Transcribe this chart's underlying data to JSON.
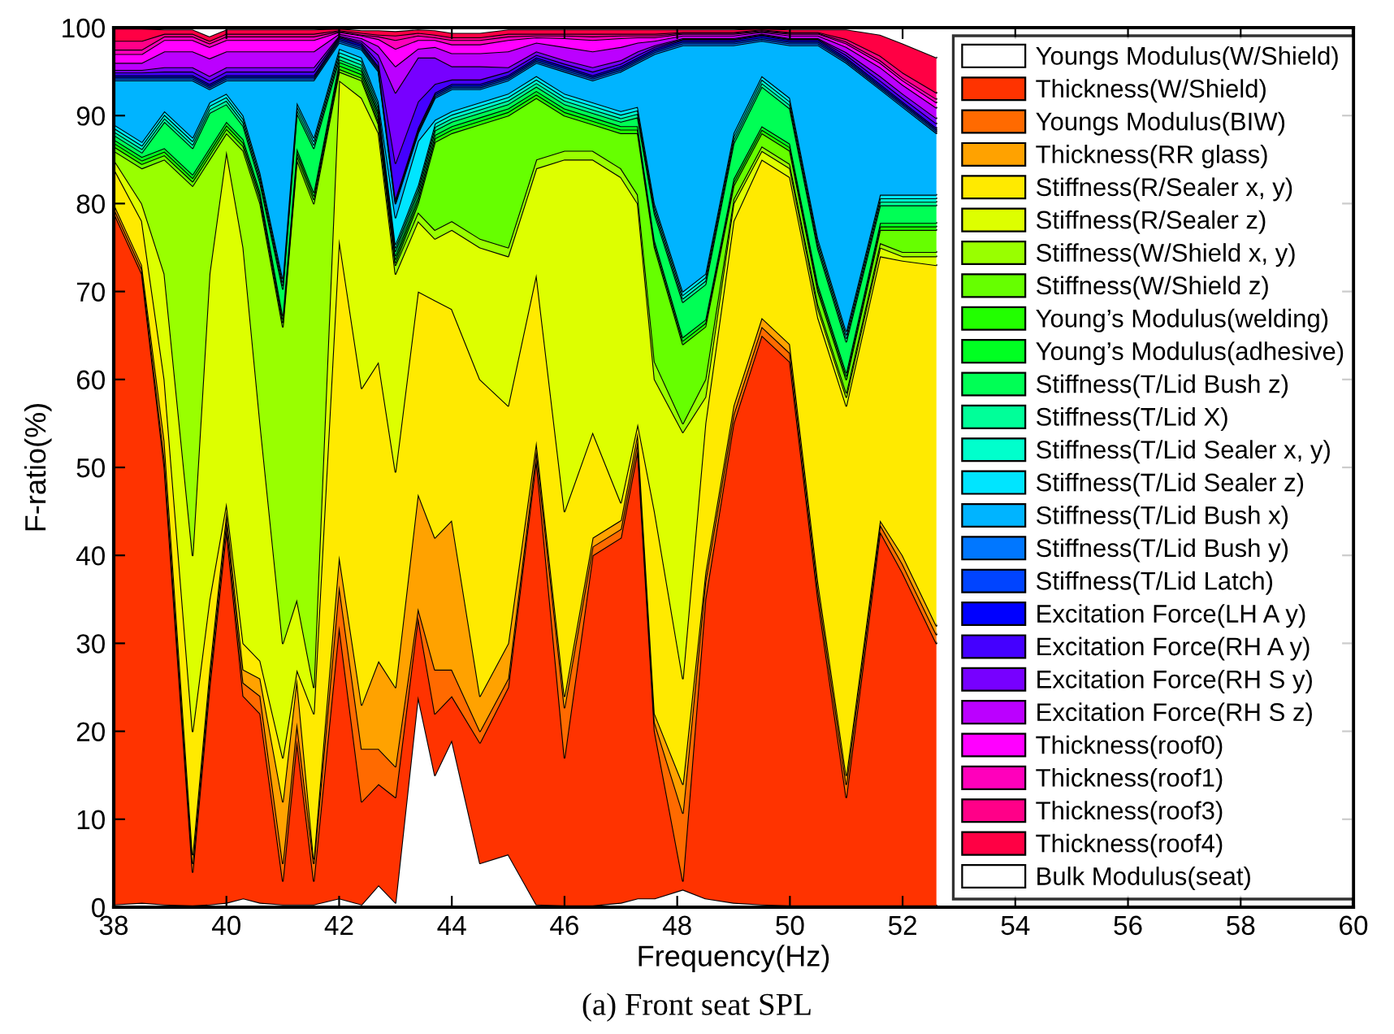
{
  "chart_data": {
    "type": "area",
    "stacked": true,
    "xlabel": "Frequency(Hz)",
    "ylabel": "F-ratio(%)",
    "annotations": [
      "(a) Front seat SPL"
    ],
    "xlim": [
      38,
      60
    ],
    "ylim": [
      0,
      100
    ],
    "xticks": [
      38,
      40,
      42,
      44,
      46,
      48,
      50,
      52,
      54,
      56,
      58,
      60
    ],
    "yticks": [
      0,
      10,
      20,
      30,
      40,
      50,
      60,
      70,
      80,
      90,
      100
    ],
    "grid": false,
    "legend": "right",
    "x": [
      38,
      38.5,
      38.9,
      39.4,
      39.7,
      40,
      40.3,
      40.6,
      41,
      41.25,
      41.55,
      42,
      42.4,
      42.7,
      43,
      43.4,
      43.7,
      44,
      44.5,
      45,
      45.5,
      46,
      46.5,
      47,
      47.3,
      47.6,
      48.1,
      48.5,
      49,
      49.5,
      50,
      50.5,
      51,
      51.6,
      52,
      52.6
    ],
    "series": [
      {
        "name": "Youngs Modulus(W/Shield)",
        "color": "#ffffff",
        "values": [
          0.3,
          0.5,
          0.3,
          0.2,
          0.3,
          0.5,
          1,
          0.5,
          0.3,
          0.3,
          0.3,
          1,
          0.3,
          2.5,
          0.5,
          24,
          15,
          19,
          5,
          6,
          0.3,
          0.2,
          0.2,
          0.5,
          1,
          1,
          2,
          1,
          0.5,
          0.3,
          0.2,
          0.2,
          0.2,
          0.2,
          0.2,
          0.2
        ]
      },
      {
        "name": "Thickness(W/Shield)",
        "color": "#ff3300",
        "values": [
          78.7,
          71.5,
          49.7,
          3.8,
          24.7,
          42.5,
          23,
          21.5,
          2.7,
          18.7,
          2.7,
          31,
          11.7,
          11.5,
          12,
          9,
          7,
          5,
          13.7,
          19,
          50.7,
          16.8,
          39.8,
          41.5,
          51,
          19,
          1,
          34,
          54.5,
          64.7,
          61.8,
          34.8,
          12.3,
          42.5,
          37.8,
          29.8
        ]
      },
      {
        "name": "Youngs Modulus(BIW)",
        "color": "#ff6a00",
        "values": [
          0.5,
          0.5,
          1,
          1,
          1,
          1,
          1.5,
          2,
          2,
          2,
          2,
          4.6,
          6,
          4,
          3.5,
          1,
          5,
          3,
          1.3,
          1,
          1,
          5.7,
          1,
          1,
          1,
          1,
          7.7,
          2,
          1,
          1,
          1,
          1,
          1.5,
          0.8,
          1,
          1
        ]
      },
      {
        "name": "Thickness(RR glass)",
        "color": "#ffa200",
        "values": [
          0.5,
          0.5,
          2,
          1,
          1,
          1,
          1.5,
          2,
          7,
          5,
          0.5,
          3.4,
          5,
          10,
          9,
          13,
          15,
          17,
          4,
          4,
          1,
          1.3,
          1,
          1,
          1,
          1,
          3.3,
          1,
          1,
          1,
          1,
          1,
          1,
          0.5,
          1,
          1
        ]
      },
      {
        "name": "Stiffness(R/Sealer x, y)",
        "color": "#ffea00",
        "values": [
          4,
          5,
          7,
          14,
          8,
          1,
          3,
          2,
          5,
          1,
          16.5,
          36,
          36,
          34,
          24.5,
          23,
          27,
          24,
          36,
          27,
          19,
          21,
          12,
          2,
          1,
          23,
          12,
          17,
          21,
          18,
          19,
          30,
          42,
          30,
          33.5,
          41
        ]
      },
      {
        "name": "Stiffness(R/Sealer z)",
        "color": "#ddff00",
        "values": [
          1,
          2,
          12,
          20,
          37,
          40,
          45,
          27,
          13,
          8,
          3,
          18,
          33,
          26,
          22.5,
          8,
          7,
          9,
          15,
          17,
          12,
          40,
          31,
          37,
          25,
          15,
          28,
          3,
          2,
          1,
          1,
          1,
          1,
          1,
          0.5,
          1
        ]
      },
      {
        "name": "Stiffness(W/Shield x, y)",
        "color": "#99ff00",
        "values": [
          1,
          4,
          13,
          42,
          13,
          2,
          11,
          25,
          36,
          50,
          55,
          1,
          2,
          1,
          1,
          1,
          1,
          1,
          1,
          1,
          1,
          1,
          1,
          1,
          1,
          2,
          1,
          2,
          0.5,
          0.5,
          0.5,
          0.5,
          0.5,
          0.5,
          0.5,
          0.5
        ]
      },
      {
        "name": "Stiffness(W/Shield z)",
        "color": "#66ff00",
        "values": [
          0.5,
          0.5,
          0.5,
          0.5,
          0.5,
          0.5,
          0.5,
          0.5,
          0.5,
          0.5,
          0.5,
          0.3,
          0.3,
          0.3,
          0.3,
          1,
          10,
          10,
          13,
          15,
          7,
          4,
          3,
          4,
          7,
          13,
          9,
          6,
          1.5,
          1.5,
          1.5,
          1.5,
          1.5,
          1.5,
          2.5,
          2.5
        ]
      },
      {
        "name": "Young’s Modulus(welding)",
        "color": "#22ff00",
        "values": [
          0.4,
          0.4,
          0.4,
          0.4,
          0.4,
          0.4,
          0.4,
          0.4,
          0.4,
          0.4,
          0.4,
          0.4,
          0.4,
          0.4,
          0.4,
          0.4,
          0.4,
          0.4,
          0.4,
          0.4,
          0.4,
          0.4,
          0.4,
          0.4,
          0.4,
          0.4,
          0.4,
          0.4,
          0.4,
          0.4,
          0.4,
          0.4,
          0.4,
          0.4,
          0.4,
          0.4
        ]
      },
      {
        "name": "Young’s Modulus(adhesive)",
        "color": "#00ff22",
        "values": [
          0.4,
          0.4,
          0.4,
          0.4,
          0.4,
          0.4,
          0.4,
          0.4,
          0.4,
          0.4,
          0.4,
          0.4,
          0.4,
          0.4,
          0.4,
          0.4,
          0.4,
          0.4,
          0.4,
          0.4,
          0.4,
          0.4,
          0.4,
          0.4,
          0.4,
          0.4,
          0.4,
          0.4,
          0.4,
          0.4,
          0.4,
          0.4,
          0.4,
          0.4,
          0.4,
          0.4
        ]
      },
      {
        "name": "Stiffness(T/Lid Bush z)",
        "color": "#00ff55",
        "values": [
          0.5,
          0.5,
          3,
          3,
          4,
          2,
          1.5,
          1,
          3,
          4,
          5,
          0.3,
          0.3,
          0.3,
          0.5,
          0.5,
          0.5,
          0.5,
          0.5,
          0.5,
          0.5,
          0.5,
          0.5,
          0.5,
          1,
          3,
          4,
          4,
          4,
          4.5,
          4,
          4,
          3.5,
          2,
          2,
          2
        ]
      },
      {
        "name": "Stiffness(T/Lid X)",
        "color": "#00ff99",
        "values": [
          0.4,
          0.4,
          0.4,
          0.4,
          0.4,
          0.4,
          0.4,
          0.4,
          0.4,
          0.4,
          0.4,
          0.4,
          0.4,
          0.4,
          0.4,
          0.4,
          0.4,
          0.4,
          0.4,
          0.4,
          0.4,
          0.4,
          0.4,
          0.4,
          0.4,
          0.4,
          0.4,
          0.4,
          0.4,
          0.4,
          0.4,
          0.4,
          0.4,
          0.4,
          0.4,
          0.4
        ]
      },
      {
        "name": "Stiffness(T/Lid Sealer x, y)",
        "color": "#00ffcc",
        "values": [
          0.4,
          0.4,
          0.4,
          0.4,
          0.4,
          0.4,
          0.4,
          0.4,
          0.4,
          0.4,
          0.4,
          0.4,
          0.4,
          0.4,
          0.4,
          0.4,
          0.4,
          0.4,
          0.4,
          0.4,
          0.4,
          0.4,
          0.4,
          0.4,
          0.4,
          0.4,
          0.4,
          0.4,
          0.4,
          0.4,
          0.4,
          0.4,
          0.4,
          0.4,
          0.4,
          0.4
        ]
      },
      {
        "name": "Stiffness(T/Lid Sealer z)",
        "color": "#00e5ff",
        "values": [
          0.4,
          0.4,
          0.4,
          0.4,
          0.4,
          0.4,
          0.4,
          0.4,
          0.4,
          0.4,
          0.4,
          0.4,
          0.4,
          0.4,
          3,
          5,
          0.4,
          0.4,
          0.4,
          0.4,
          0.4,
          0.4,
          0.4,
          0.4,
          0.4,
          0.4,
          0.4,
          0.4,
          0.4,
          0.4,
          0.4,
          0.4,
          0.4,
          0.4,
          0.4,
          0.4
        ]
      },
      {
        "name": "Stiffness(T/Lid Bush x)",
        "color": "#00b4ff",
        "values": [
          5,
          7,
          3.5,
          6.5,
          1.5,
          1.5,
          4,
          10.5,
          22.5,
          2.5,
          6.5,
          0.7,
          0.9,
          3.4,
          1.6,
          0.9,
          2.5,
          2.5,
          1.5,
          1.5,
          1.5,
          2.5,
          2.5,
          4.5,
          5,
          17,
          28,
          26,
          10,
          4,
          6,
          22,
          30.5,
          12,
          10,
          7
        ]
      },
      {
        "name": "Stiffness(T/Lid Bush y)",
        "color": "#0077ff",
        "values": [
          0.2,
          0.2,
          0.2,
          0.2,
          0.2,
          0.2,
          0.2,
          0.2,
          0.2,
          0.2,
          0.2,
          0.2,
          0.2,
          0.2,
          0.2,
          0.2,
          0.2,
          0.2,
          0.2,
          0.2,
          0.2,
          0.2,
          0.2,
          0.2,
          0.2,
          0.2,
          0.2,
          0.2,
          0.2,
          0.2,
          0.2,
          0.2,
          0.2,
          0.2,
          0.2,
          0.2
        ]
      },
      {
        "name": "Stiffness(T/Lid Latch)",
        "color": "#0044ff",
        "values": [
          0.2,
          0.2,
          0.2,
          0.2,
          0.2,
          0.2,
          0.2,
          0.2,
          0.2,
          0.2,
          0.2,
          0.2,
          0.2,
          0.2,
          0.2,
          0.2,
          0.2,
          0.2,
          0.2,
          0.2,
          0.2,
          0.2,
          0.2,
          0.2,
          0.2,
          0.2,
          0.2,
          0.2,
          0.2,
          0.2,
          0.2,
          0.2,
          0.2,
          0.2,
          0.2,
          0.2
        ]
      },
      {
        "name": "Excitation Force(LH A y)",
        "color": "#0000ff",
        "values": [
          0.2,
          0.2,
          0.2,
          0.2,
          0.2,
          0.2,
          0.2,
          0.2,
          0.2,
          0.2,
          0.2,
          0.2,
          0.2,
          0.2,
          0.2,
          0.2,
          0.2,
          0.2,
          0.2,
          0.2,
          0.2,
          0.2,
          0.2,
          0.2,
          0.2,
          0.2,
          0.2,
          0.2,
          0.2,
          0.2,
          0.2,
          0.2,
          0.2,
          0.2,
          0.2,
          0.2
        ]
      },
      {
        "name": "Excitation Force(RH A y)",
        "color": "#4400ff",
        "values": [
          0.3,
          0.3,
          0.4,
          0.4,
          0.4,
          0.4,
          0.4,
          0.4,
          0.4,
          0.4,
          0.4,
          0.1,
          0.2,
          0.5,
          4,
          3,
          1,
          0.5,
          0.5,
          0.4,
          0.3,
          0.3,
          0.4,
          0.3,
          0.3,
          0.2,
          0.1,
          0.1,
          0.1,
          0.1,
          0.1,
          0.1,
          0.3,
          0.4,
          0.4,
          0.5
        ]
      },
      {
        "name": "Excitation Force(RH S y)",
        "color": "#7700ff",
        "values": [
          0.3,
          0.3,
          0.5,
          0.5,
          0.5,
          0.5,
          0.5,
          0.5,
          0.5,
          0.5,
          0.5,
          0.1,
          0.2,
          0.8,
          8,
          5,
          3,
          1.5,
          1.5,
          0.5,
          0.4,
          0.4,
          0.5,
          0.4,
          0.4,
          0.2,
          0.1,
          0.1,
          0.1,
          0.1,
          0.1,
          0.1,
          0.3,
          0.5,
          0.5,
          0.6
        ]
      },
      {
        "name": "Excitation Force(RH S z)",
        "color": "#bb00ff",
        "values": [
          0.8,
          0.8,
          1.8,
          1.8,
          2,
          1.8,
          1.8,
          1.8,
          1.8,
          1.8,
          1.8,
          0.2,
          0.3,
          1,
          3,
          1,
          1.2,
          1.5,
          1.5,
          1.8,
          1,
          1.5,
          1.8,
          1.5,
          1,
          0.5,
          0.3,
          0.3,
          0.3,
          0.2,
          0.3,
          0.3,
          0.6,
          1,
          1,
          1.2
        ]
      },
      {
        "name": "Thickness(roof0)",
        "color": "#ff00ff",
        "values": [
          1,
          1,
          1.3,
          1.3,
          1.3,
          1.3,
          1.3,
          1.3,
          1.3,
          1.3,
          1.3,
          0.2,
          0.3,
          0.8,
          2,
          1,
          0.8,
          1,
          1,
          1.3,
          0.6,
          1,
          1.3,
          1,
          0.6,
          0.4,
          0.2,
          0.2,
          0.2,
          0.1,
          0.2,
          0.2,
          0.4,
          0.5,
          0.5,
          0.6
        ]
      },
      {
        "name": "Thickness(roof1)",
        "color": "#ff00bb",
        "values": [
          0.5,
          0.5,
          0.4,
          0.4,
          0.4,
          0.4,
          0.4,
          0.4,
          0.4,
          0.4,
          0.4,
          0.1,
          0.1,
          0.3,
          1,
          0.5,
          0.3,
          0.5,
          0.5,
          0.4,
          0.2,
          0.3,
          0.4,
          0.3,
          0.2,
          0.2,
          0.1,
          0.1,
          0.1,
          0.1,
          0.1,
          0.1,
          0.2,
          0.3,
          0.3,
          0.4
        ]
      },
      {
        "name": "Thickness(roof3)",
        "color": "#ff0088",
        "values": [
          1,
          1,
          0.3,
          0.3,
          0.3,
          0.3,
          0.3,
          0.3,
          0.3,
          0.3,
          0.3,
          0.1,
          0.2,
          0.2,
          0.5,
          0.3,
          0.3,
          0.3,
          0.3,
          0.3,
          0.2,
          0.2,
          0.3,
          0.2,
          0.2,
          0.2,
          0.1,
          0.1,
          0.1,
          0.1,
          0.1,
          0.1,
          0.3,
          0.5,
          0.6,
          0.7
        ]
      },
      {
        "name": "Thickness(roof4)",
        "color": "#ff0044",
        "values": [
          1.4,
          1.4,
          0.5,
          0.5,
          0.5,
          0.5,
          0.5,
          0.5,
          0.5,
          0.5,
          0.5,
          0.2,
          0.3,
          0.5,
          0.5,
          0.4,
          0.5,
          0.5,
          0.5,
          0.5,
          0.5,
          0.5,
          0.5,
          0.5,
          0.5,
          0.5,
          0.3,
          0.3,
          0.3,
          0.1,
          0.3,
          0.3,
          1.1,
          2.4,
          3.3,
          4
        ]
      },
      {
        "name": "Bulk Modulus(seat)",
        "color": "#ffffff",
        "values": [
          0.1,
          0.1,
          0.2,
          0.2,
          1,
          0.2,
          0.2,
          0.2,
          0.2,
          0.2,
          0.2,
          0.1,
          0.3,
          0.3,
          0.4,
          0.2,
          0.3,
          0.6,
          0.6,
          0.2,
          0.2,
          0.2,
          0.2,
          0.2,
          0.2,
          0.2,
          0.2,
          0.2,
          0.2,
          0.1,
          0.2,
          0.2,
          0.2,
          0.8,
          1.8,
          3.4
        ]
      }
    ]
  }
}
